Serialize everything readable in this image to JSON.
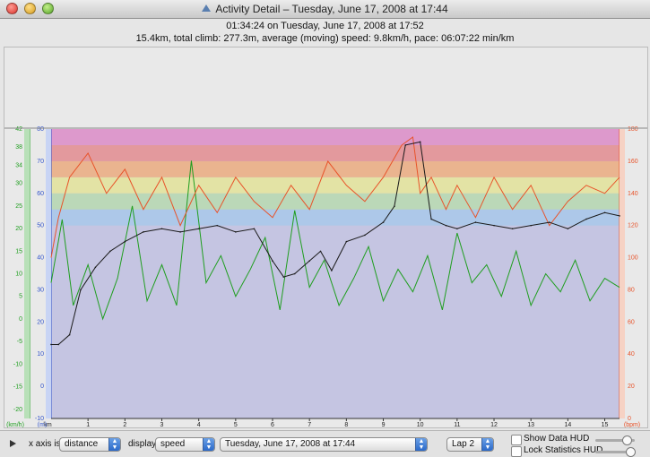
{
  "window": {
    "title": "Activity Detail – Tuesday, June 17, 2008 at 17:44"
  },
  "summary": {
    "line1": "01:34:24 on Tuesday, June 17, 2008 at 17:52",
    "line2": "15.4km, total climb: 277.3m, average (moving) speed: 9.8km/h, pace: 06:07:22 min/km"
  },
  "controls": {
    "xaxis_label": "x axis is:",
    "xaxis_value": "distance",
    "display_label": "display:",
    "display_value": "speed",
    "date_value": "Tuesday, June 17, 2008 at 17:44",
    "lap_value": "Lap 2",
    "show_data_hud": "Show Data HUD",
    "lock_stats_hud": "Lock Statistics HUD"
  },
  "colors": {
    "speed": "#1f9e1f",
    "heartrate": "#e8532a",
    "altitude": "#1a1a1a",
    "fill": "#c5c5e2",
    "zones": [
      "#a8c8ea",
      "#b8dbb0",
      "#e8e89a",
      "#f0b080",
      "#e89090",
      "#e090c8"
    ]
  },
  "chart_data": {
    "type": "line",
    "xlabel": "km",
    "x_ticks": [
      "1",
      "2",
      "3",
      "4",
      "5",
      "6",
      "7",
      "8",
      "9",
      "10",
      "11",
      "12",
      "13",
      "14",
      "15"
    ],
    "xlim": [
      0,
      15.4
    ],
    "axes": {
      "speed": {
        "unit": "km/h",
        "ticks": [
          "-20",
          "-15",
          "-10",
          "-5",
          "0",
          "5",
          "10",
          "15",
          "20",
          "25",
          "30",
          "34",
          "38",
          "42"
        ],
        "ylim": [
          -22,
          42
        ]
      },
      "altitude": {
        "unit": "m",
        "ticks": [
          "-10",
          "0",
          "10",
          "20",
          "30",
          "40",
          "50",
          "60",
          "70",
          "80"
        ],
        "ylim": [
          -10,
          80
        ]
      },
      "heartrate": {
        "unit": "bpm",
        "ticks": [
          "0",
          "20",
          "40",
          "60",
          "80",
          "100",
          "120",
          "140",
          "160",
          "180"
        ],
        "ylim": [
          0,
          180
        ]
      }
    },
    "hr_zones": [
      120,
      130,
      140,
      150,
      160,
      170,
      180
    ],
    "altitude": {
      "x": [
        0,
        0.2,
        0.5,
        0.8,
        1.2,
        1.6,
        2.0,
        2.5,
        3.0,
        3.5,
        4.0,
        4.5,
        5.0,
        5.5,
        6.0,
        6.3,
        6.6,
        7.0,
        7.3,
        7.6,
        8.0,
        8.5,
        9.0,
        9.3,
        9.6,
        10.0,
        10.3,
        10.7,
        11.0,
        11.5,
        12.0,
        12.5,
        13.0,
        13.5,
        14.0,
        14.5,
        15.0,
        15.4
      ],
      "y": [
        13,
        13,
        16,
        30,
        37,
        42,
        45,
        48,
        49,
        48,
        49,
        50,
        48,
        49,
        39,
        34,
        35,
        39,
        42,
        36,
        45,
        47,
        51,
        56,
        75,
        76,
        52,
        50,
        49,
        51,
        50,
        49,
        50,
        51,
        49,
        52,
        54,
        53
      ]
    },
    "heartrate": {
      "x": [
        0,
        0.2,
        0.5,
        1.0,
        1.5,
        2.0,
        2.5,
        3.0,
        3.5,
        4.0,
        4.5,
        5.0,
        5.5,
        6.0,
        6.5,
        7.0,
        7.5,
        8.0,
        8.5,
        9.0,
        9.5,
        9.8,
        10.0,
        10.3,
        10.7,
        11.0,
        11.5,
        12.0,
        12.5,
        13.0,
        13.5,
        14.0,
        14.5,
        15.0,
        15.4
      ],
      "y": [
        100,
        125,
        150,
        165,
        140,
        155,
        130,
        150,
        120,
        145,
        128,
        150,
        135,
        125,
        145,
        130,
        160,
        145,
        135,
        150,
        170,
        175,
        140,
        150,
        130,
        145,
        125,
        150,
        130,
        145,
        120,
        135,
        145,
        140,
        150
      ]
    },
    "speed": {
      "x": [
        0,
        0.3,
        0.6,
        1.0,
        1.4,
        1.8,
        2.2,
        2.6,
        3.0,
        3.4,
        3.8,
        4.2,
        4.6,
        5.0,
        5.4,
        5.8,
        6.2,
        6.6,
        7.0,
        7.4,
        7.8,
        8.2,
        8.6,
        9.0,
        9.4,
        9.8,
        10.2,
        10.6,
        11.0,
        11.4,
        11.8,
        12.2,
        12.6,
        13.0,
        13.4,
        13.8,
        14.2,
        14.6,
        15.0,
        15.4
      ],
      "y": [
        8,
        22,
        3,
        12,
        0,
        9,
        25,
        4,
        12,
        3,
        35,
        8,
        14,
        5,
        11,
        18,
        2,
        24,
        7,
        13,
        3,
        9,
        16,
        4,
        11,
        6,
        14,
        2,
        19,
        8,
        12,
        5,
        15,
        3,
        10,
        6,
        13,
        4,
        9,
        7
      ]
    }
  }
}
